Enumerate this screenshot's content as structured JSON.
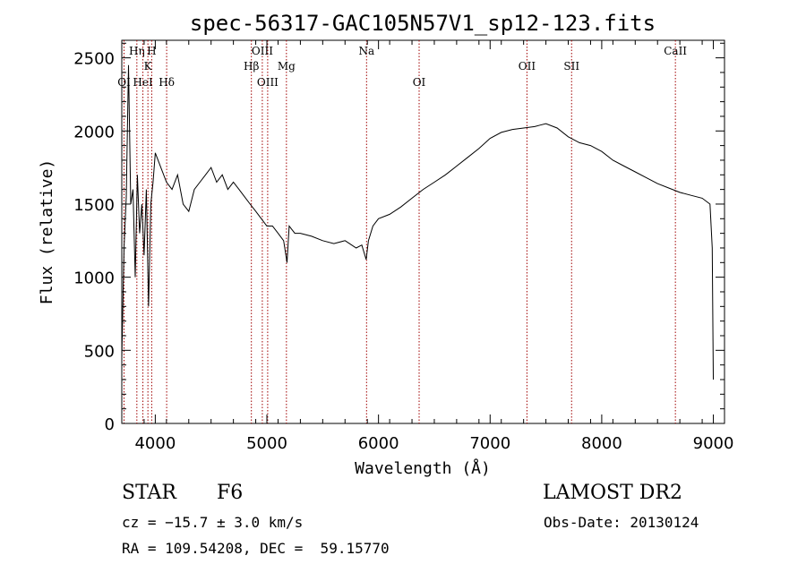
{
  "chart_data": {
    "type": "line",
    "title": "spec-56317-GAC105N57V1_sp12-123.fits",
    "xlabel": "Wavelength (Å)",
    "ylabel": "Flux (relative)",
    "xlim": [
      3700,
      9100
    ],
    "ylim": [
      0,
      2620
    ],
    "x_ticks": [
      4000,
      5000,
      6000,
      7000,
      8000,
      9000
    ],
    "y_ticks": [
      0,
      500,
      1000,
      1500,
      2000,
      2500
    ],
    "grid": false,
    "line_color": "#000000",
    "marker_color": "#a00000",
    "series": [
      {
        "x": [
          3700,
          3720,
          3740,
          3760,
          3780,
          3800,
          3820,
          3840,
          3860,
          3880,
          3900,
          3920,
          3940,
          3960,
          3980,
          4000,
          4050,
          4100,
          4150,
          4200,
          4250,
          4300,
          4350,
          4400,
          4450,
          4500,
          4550,
          4600,
          4650,
          4700,
          4750,
          4800,
          4850,
          4900,
          4950,
          5000,
          5050,
          5100,
          5150,
          5180,
          5200,
          5250,
          5300,
          5400,
          5500,
          5600,
          5700,
          5800,
          5850,
          5890,
          5910,
          5950,
          6000,
          6100,
          6200,
          6300,
          6400,
          6500,
          6600,
          6700,
          6800,
          6900,
          7000,
          7100,
          7200,
          7300,
          7400,
          7450,
          7500,
          7600,
          7700,
          7800,
          7900,
          8000,
          8100,
          8200,
          8300,
          8400,
          8500,
          8600,
          8700,
          8800,
          8900,
          8970,
          8990,
          9000
        ],
        "y": [
          450,
          1200,
          1550,
          2450,
          1500,
          1600,
          1000,
          1700,
          1300,
          1500,
          1150,
          1600,
          800,
          1500,
          1650,
          1850,
          1750,
          1650,
          1600,
          1700,
          1500,
          1450,
          1600,
          1650,
          1700,
          1750,
          1650,
          1700,
          1600,
          1650,
          1600,
          1550,
          1500,
          1450,
          1400,
          1350,
          1350,
          1300,
          1250,
          1100,
          1350,
          1300,
          1300,
          1280,
          1250,
          1230,
          1250,
          1200,
          1220,
          1120,
          1250,
          1350,
          1400,
          1430,
          1480,
          1540,
          1600,
          1650,
          1700,
          1760,
          1820,
          1880,
          1950,
          1990,
          2010,
          2020,
          2030,
          2040,
          2050,
          2020,
          1960,
          1920,
          1900,
          1860,
          1800,
          1760,
          1720,
          1680,
          1640,
          1610,
          1580,
          1560,
          1540,
          1500,
          1200,
          300
        ]
      }
    ],
    "lines": [
      {
        "label": "OI",
        "x": 3720,
        "row": 3
      },
      {
        "label": "Hη",
        "x": 3835,
        "row": 1
      },
      {
        "label": "HeI",
        "x": 3889,
        "row": 3
      },
      {
        "label": "H",
        "x": 3968,
        "row": 1
      },
      {
        "label": "K",
        "x": 3934,
        "row": 2
      },
      {
        "label": "Hδ",
        "x": 4102,
        "row": 3
      },
      {
        "label": "Hβ",
        "x": 4861,
        "row": 2
      },
      {
        "label": "OIII",
        "x": 4959,
        "row": 1
      },
      {
        "label": "OIII",
        "x": 5007,
        "row": 3
      },
      {
        "label": "Mg",
        "x": 5175,
        "row": 2
      },
      {
        "label": "Na",
        "x": 5893,
        "row": 1
      },
      {
        "label": "OI",
        "x": 6364,
        "row": 3
      },
      {
        "label": "OII",
        "x": 7330,
        "row": 2
      },
      {
        "label": "SII",
        "x": 7730,
        "row": 2
      },
      {
        "label": "CaII",
        "x": 8660,
        "row": 1
      }
    ]
  },
  "info": {
    "object_class": "STAR",
    "subclass": "F6",
    "survey": "LAMOST DR2",
    "cz": "cz = −15.7 ± 3.0 km/s",
    "obs_date": "Obs-Date: 20130124",
    "coords": "RA = 109.54208, DEC =  59.15770"
  }
}
